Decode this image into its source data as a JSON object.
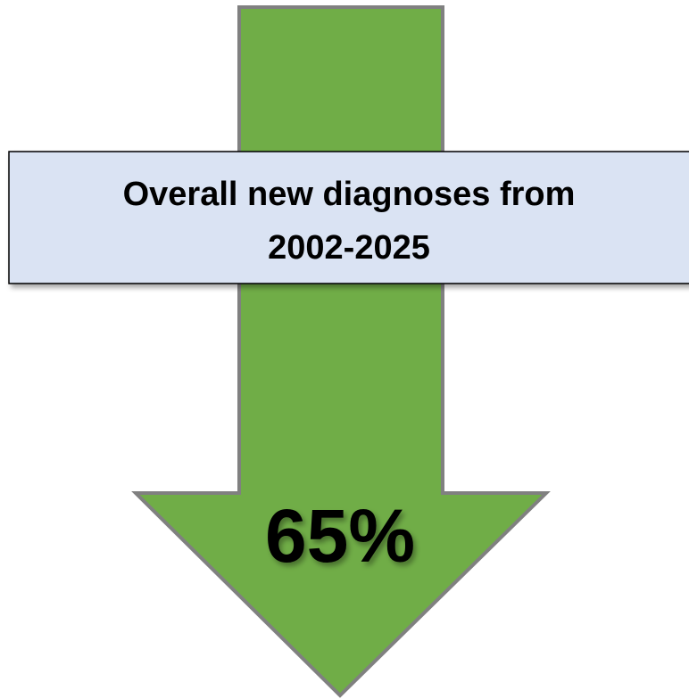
{
  "banner": {
    "lines": [
      "Overall new diagnoses from",
      "2002-2025"
    ]
  },
  "arrow": {
    "label": "65%"
  }
}
